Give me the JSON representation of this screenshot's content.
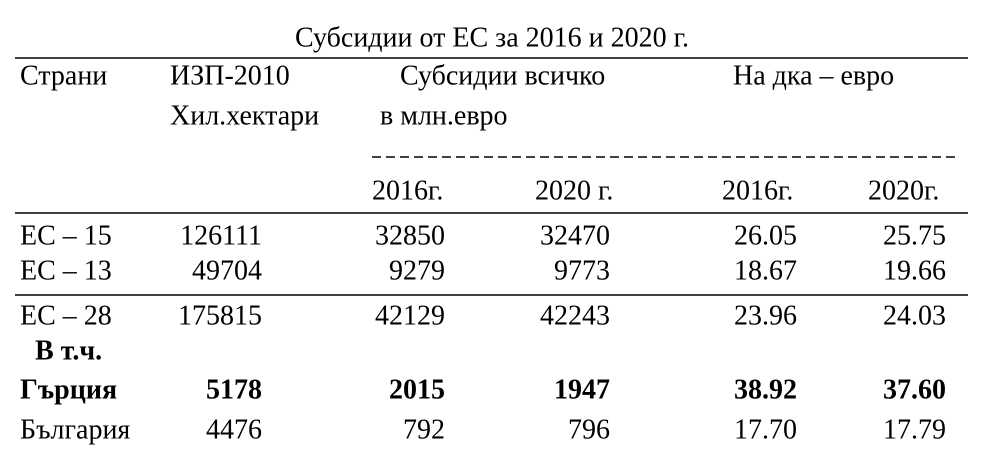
{
  "title": "Субсидии от ЕС за 2016 и 2020 г.",
  "header": {
    "country": "Страни",
    "area": [
      "ИЗП-2010",
      "Хил.хектари"
    ],
    "subsidies": [
      "Субсидии всичко",
      "в млн.евро"
    ],
    "per_decare": "На дка – евро",
    "years": [
      "2016г.",
      "2020 г.",
      "2016г.",
      "2020г."
    ]
  },
  "table": {
    "rows": [
      [
        "ЕС – 15",
        "126111",
        "32850",
        "32470",
        "26.05",
        "25.75"
      ],
      [
        "ЕС – 13",
        "49704",
        "9279",
        "9773",
        "18.67",
        "19.66"
      ],
      [
        "ЕС – 28",
        "175815",
        "42129",
        "42243",
        "23.96",
        "24.03"
      ]
    ],
    "subgroup": {
      "label": "В т.ч.",
      "rows": [
        [
          "Гърция",
          "5178",
          "2015",
          "1947",
          "38.92",
          "37.60"
        ],
        [
          "България",
          "4476",
          "792",
          "796",
          "17.70",
          "17.79"
        ]
      ]
    }
  }
}
